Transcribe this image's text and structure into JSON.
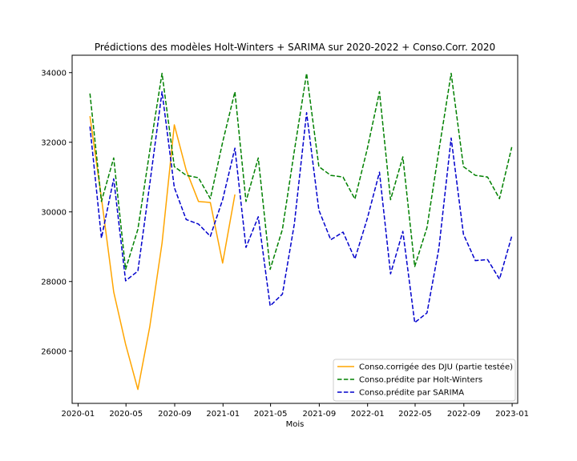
{
  "chart_data": {
    "type": "line",
    "title": "Prédictions des modèles Holt-Winters + SARIMA sur 2020-2022 + Conso.Corr. 2020",
    "xlabel": "Mois",
    "ylabel": "",
    "ylim": [
      24500,
      34500
    ],
    "xlim": [
      "2019-12-17",
      "2023-01-15"
    ],
    "legend_position": "lower-right",
    "grid": false,
    "x_ticks": [
      "2020-01",
      "2020-05",
      "2020-09",
      "2021-01",
      "2021-05",
      "2021-09",
      "2022-01",
      "2022-05",
      "2022-09",
      "2023-01"
    ],
    "y_ticks": [
      26000,
      28000,
      30000,
      32000,
      34000
    ],
    "series": [
      {
        "name": "Conso.corrigée des DJU (partie testée)",
        "color": "#FFA500",
        "style": "solid",
        "x": [
          "2020-01-31",
          "2020-02-29",
          "2020-03-31",
          "2020-04-30",
          "2020-05-31",
          "2020-06-30",
          "2020-07-31",
          "2020-08-31",
          "2020-09-30",
          "2020-10-31",
          "2020-11-30",
          "2020-12-31",
          "2021-01-31"
        ],
        "values": [
          32750,
          30400,
          27700,
          26200,
          24900,
          26700,
          29100,
          32500,
          31200,
          30300,
          30270,
          28530,
          30500
        ]
      },
      {
        "name": "Conso.prédite par Holt-Winters",
        "color": "#008000",
        "style": "dashed",
        "x": [
          "2020-01-31",
          "2020-02-29",
          "2020-03-31",
          "2020-04-30",
          "2020-05-31",
          "2020-06-30",
          "2020-07-31",
          "2020-08-31",
          "2020-09-30",
          "2020-10-31",
          "2020-11-30",
          "2020-12-31",
          "2021-01-31",
          "2021-02-28",
          "2021-03-31",
          "2021-04-30",
          "2021-05-31",
          "2021-06-30",
          "2021-07-31",
          "2021-08-31",
          "2021-09-30",
          "2021-10-31",
          "2021-11-30",
          "2021-12-31",
          "2022-01-31",
          "2022-02-28",
          "2022-03-31",
          "2022-04-30",
          "2022-05-31",
          "2022-06-30",
          "2022-07-31",
          "2022-08-31",
          "2022-09-30",
          "2022-10-31",
          "2022-11-30",
          "2022-12-31",
          "2023-01-31"
        ],
        "values": [
          33400,
          30300,
          31550,
          28350,
          29500,
          31750,
          33980,
          31300,
          31050,
          30980,
          30380,
          32000,
          33450,
          30300,
          31550,
          28350,
          29500,
          31750,
          33980,
          31300,
          31050,
          31000,
          30370,
          31800,
          33450,
          30350,
          31580,
          28430,
          29550,
          31760,
          33980,
          31300,
          31050,
          31000,
          30380,
          31860,
          null
        ]
      },
      {
        "name": "Conso.prédite par SARIMA",
        "color": "#0000CC",
        "style": "dashed",
        "x": [
          "2020-01-31",
          "2020-02-29",
          "2020-03-31",
          "2020-04-30",
          "2020-05-31",
          "2020-06-30",
          "2020-07-31",
          "2020-08-31",
          "2020-09-30",
          "2020-10-31",
          "2020-11-30",
          "2020-12-31",
          "2021-01-31",
          "2021-02-28",
          "2021-03-31",
          "2021-04-30",
          "2021-05-31",
          "2021-06-30",
          "2021-07-31",
          "2021-08-31",
          "2021-09-30",
          "2021-10-31",
          "2021-11-30",
          "2021-12-31",
          "2022-01-31",
          "2022-02-28",
          "2022-03-31",
          "2022-04-30",
          "2022-05-31",
          "2022-06-30",
          "2022-07-31",
          "2022-08-31",
          "2022-09-30",
          "2022-10-31",
          "2022-11-30",
          "2022-12-31"
        ],
        "values": [
          32450,
          29250,
          30950,
          28020,
          28300,
          30800,
          33450,
          30700,
          29780,
          29650,
          29300,
          30350,
          31830,
          28980,
          29860,
          27300,
          27640,
          29650,
          32850,
          30050,
          29200,
          29420,
          28650,
          29800,
          31140,
          28220,
          29440,
          26820,
          27100,
          28950,
          32120,
          29360,
          28600,
          28630,
          28070,
          29300
        ]
      }
    ]
  }
}
